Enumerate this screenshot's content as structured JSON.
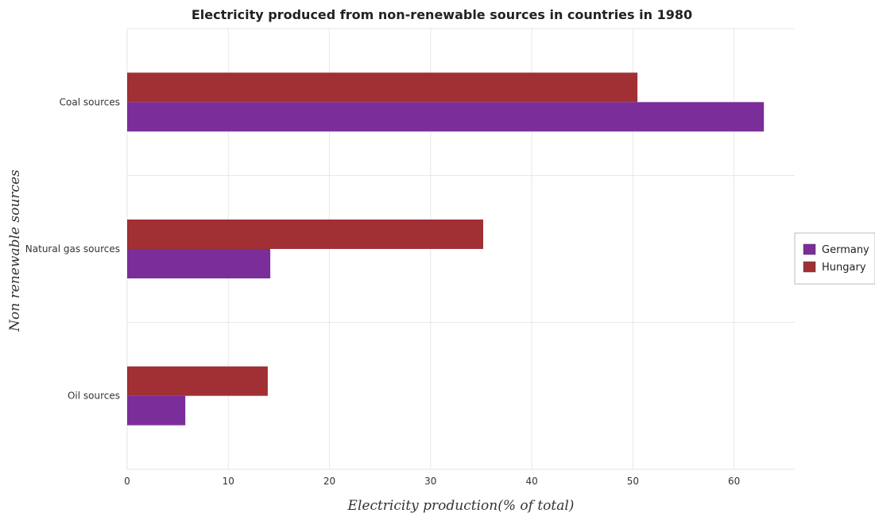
{
  "chart_data": {
    "type": "bar",
    "orientation": "horizontal",
    "title": "Electricity produced from non-renewable sources in countries in 1980",
    "xlabel": "Electricity production(% of total)",
    "ylabel": "Non renewable sources",
    "categories": [
      "Coal sources",
      "Natural gas sources",
      "Oil sources"
    ],
    "series": [
      {
        "name": "Germany",
        "color": "#7b2d9a",
        "values": [
          62.95,
          14.15,
          5.75
        ]
      },
      {
        "name": "Hungary",
        "color": "#a03033",
        "values": [
          50.45,
          35.2,
          13.9
        ]
      }
    ],
    "xlim": [
      0,
      66
    ],
    "xticks": [
      0,
      10,
      20,
      30,
      40,
      50,
      60
    ],
    "grid": true,
    "legend_position": "right"
  }
}
